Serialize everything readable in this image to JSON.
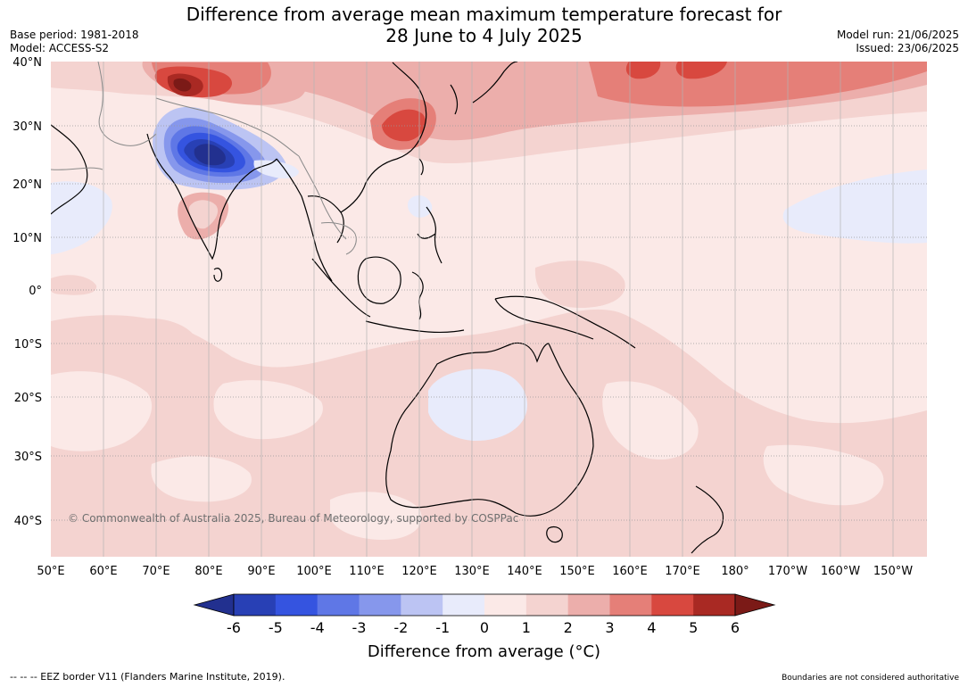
{
  "title_line1": "Difference from average mean maximum temperature forecast for",
  "title_line2": "28 June to 4 July 2025",
  "base_period": "Base period: 1981-2018",
  "model": "Model: ACCESS-S2",
  "model_run": "Model run: 21/06/2025",
  "issued": "Issued: 23/06/2025",
  "copyright": "© Commonwealth of Australia 2025, Bureau of Meteorology, supported by COSPPac",
  "footer_left": "-- -- -- EEZ border V11 (Flanders Marine Institute, 2019).",
  "footer_right": "Boundaries are not considered authoritative",
  "lat_labels": [
    "40°N",
    "30°N",
    "20°N",
    "10°N",
    "0°",
    "10°S",
    "20°S",
    "30°S",
    "40°S"
  ],
  "lon_labels": [
    "50°E",
    "60°E",
    "70°E",
    "80°E",
    "90°E",
    "100°E",
    "110°E",
    "120°E",
    "130°E",
    "140°E",
    "150°E",
    "160°E",
    "170°E",
    "180°",
    "170°W",
    "160°W",
    "150°W"
  ],
  "colorbar": {
    "title": "Difference from average (°C)",
    "ticks": [
      "-6",
      "-5",
      "-4",
      "-3",
      "-2",
      "-1",
      "0",
      "1",
      "2",
      "3",
      "4",
      "5",
      "6"
    ],
    "colors": [
      "#22308f",
      "#2840b5",
      "#3554e0",
      "#5f77e6",
      "#8697ec",
      "#bcc4f3",
      "#e8ebfb",
      "#fbe9e7",
      "#f4d3d0",
      "#ecaeab",
      "#e57f78",
      "#d8483f",
      "#a92923",
      "#7b1a17"
    ]
  }
}
